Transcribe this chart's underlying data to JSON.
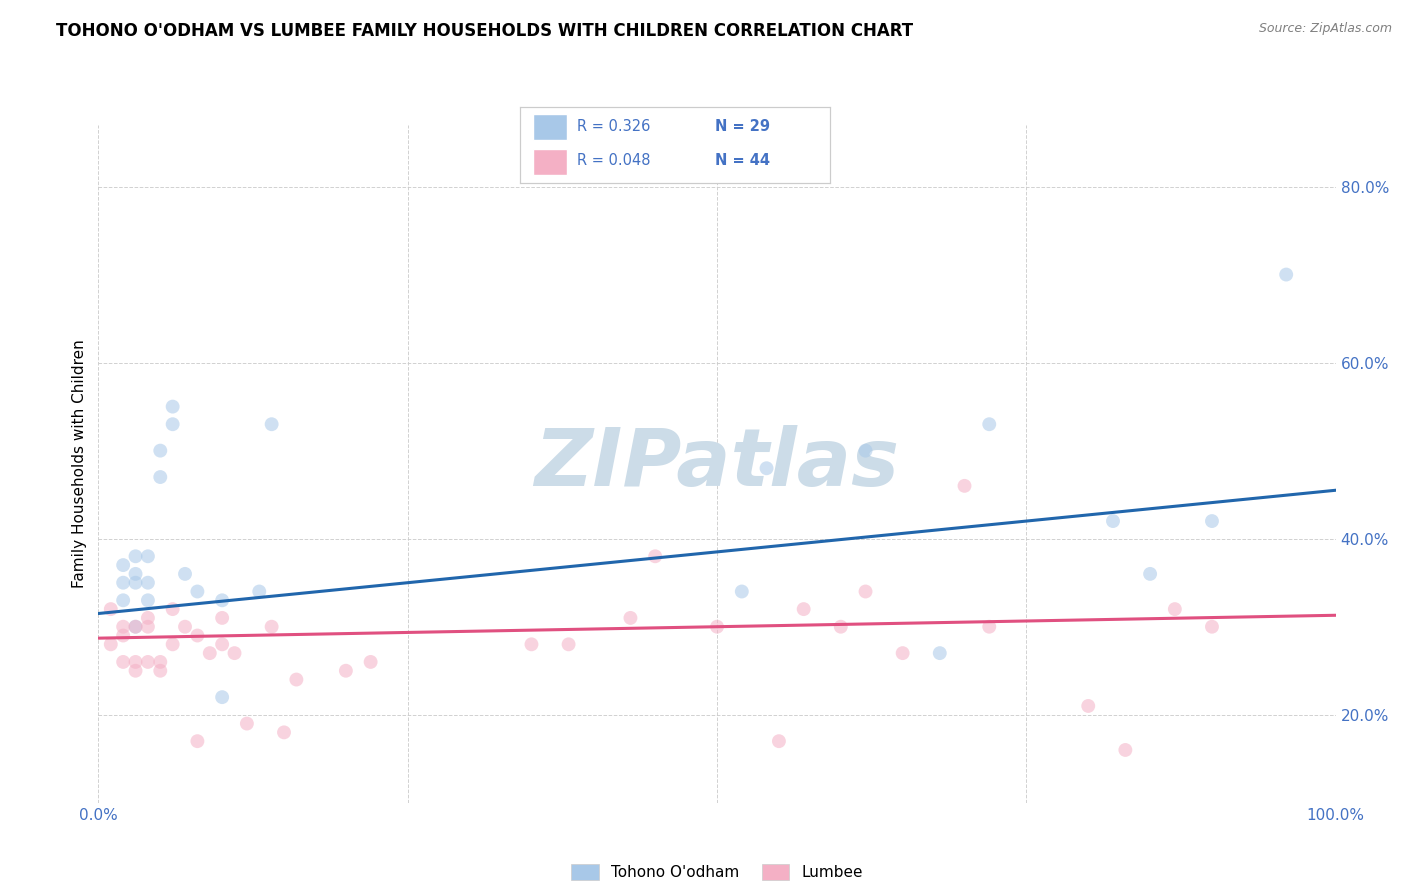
{
  "title": "TOHONO O'ODHAM VS LUMBEE FAMILY HOUSEHOLDS WITH CHILDREN CORRELATION CHART",
  "source": "Source: ZipAtlas.com",
  "ylabel": "Family Households with Children",
  "watermark": "ZIPatlas",
  "legend_blue_r": "R = 0.326",
  "legend_blue_n": "N = 29",
  "legend_pink_r": "R = 0.048",
  "legend_pink_n": "N = 44",
  "legend_label_blue": "Tohono O'odham",
  "legend_label_pink": "Lumbee",
  "xlim": [
    0.0,
    1.0
  ],
  "ylim": [
    0.1,
    0.87
  ],
  "yticks": [
    0.2,
    0.4,
    0.6,
    0.8
  ],
  "ytick_labels": [
    "20.0%",
    "40.0%",
    "60.0%",
    "80.0%"
  ],
  "xticks": [
    0.0,
    0.25,
    0.5,
    0.75,
    1.0
  ],
  "xtick_labels": [
    "0.0%",
    "",
    "",
    "",
    "100.0%"
  ],
  "blue_scatter_x": [
    0.02,
    0.02,
    0.02,
    0.03,
    0.03,
    0.03,
    0.03,
    0.04,
    0.04,
    0.04,
    0.05,
    0.05,
    0.06,
    0.06,
    0.07,
    0.08,
    0.1,
    0.1,
    0.13,
    0.14,
    0.52,
    0.54,
    0.62,
    0.68,
    0.72,
    0.82,
    0.85,
    0.9,
    0.96
  ],
  "blue_scatter_y": [
    0.33,
    0.35,
    0.37,
    0.3,
    0.35,
    0.36,
    0.38,
    0.33,
    0.35,
    0.38,
    0.47,
    0.5,
    0.53,
    0.55,
    0.36,
    0.34,
    0.33,
    0.22,
    0.34,
    0.53,
    0.34,
    0.48,
    0.5,
    0.27,
    0.53,
    0.42,
    0.36,
    0.42,
    0.7
  ],
  "pink_scatter_x": [
    0.01,
    0.01,
    0.02,
    0.02,
    0.02,
    0.03,
    0.03,
    0.03,
    0.04,
    0.04,
    0.04,
    0.05,
    0.05,
    0.06,
    0.06,
    0.07,
    0.08,
    0.08,
    0.09,
    0.1,
    0.1,
    0.11,
    0.12,
    0.14,
    0.15,
    0.16,
    0.2,
    0.22,
    0.35,
    0.38,
    0.43,
    0.45,
    0.5,
    0.55,
    0.57,
    0.6,
    0.62,
    0.65,
    0.7,
    0.72,
    0.8,
    0.83,
    0.87,
    0.9
  ],
  "pink_scatter_y": [
    0.28,
    0.32,
    0.26,
    0.29,
    0.3,
    0.25,
    0.26,
    0.3,
    0.26,
    0.3,
    0.31,
    0.25,
    0.26,
    0.28,
    0.32,
    0.3,
    0.17,
    0.29,
    0.27,
    0.28,
    0.31,
    0.27,
    0.19,
    0.3,
    0.18,
    0.24,
    0.25,
    0.26,
    0.28,
    0.28,
    0.31,
    0.38,
    0.3,
    0.17,
    0.32,
    0.3,
    0.34,
    0.27,
    0.46,
    0.3,
    0.21,
    0.16,
    0.32,
    0.3
  ],
  "blue_line_x": [
    0.0,
    1.0
  ],
  "blue_line_y_start": 0.315,
  "blue_line_y_end": 0.455,
  "pink_line_x": [
    0.0,
    1.0
  ],
  "pink_line_y_start": 0.287,
  "pink_line_y_end": 0.313,
  "blue_color": "#a8c8e8",
  "blue_line_color": "#2166ac",
  "pink_color": "#f4b0c5",
  "pink_line_color": "#e05080",
  "background_color": "#ffffff",
  "grid_color": "#cccccc",
  "title_fontsize": 12,
  "axis_label_fontsize": 11,
  "tick_fontsize": 11,
  "tick_color": "#4472c4",
  "watermark_color": "#ccdce8",
  "scatter_size": 100,
  "scatter_alpha": 0.55,
  "line_width": 2.2
}
